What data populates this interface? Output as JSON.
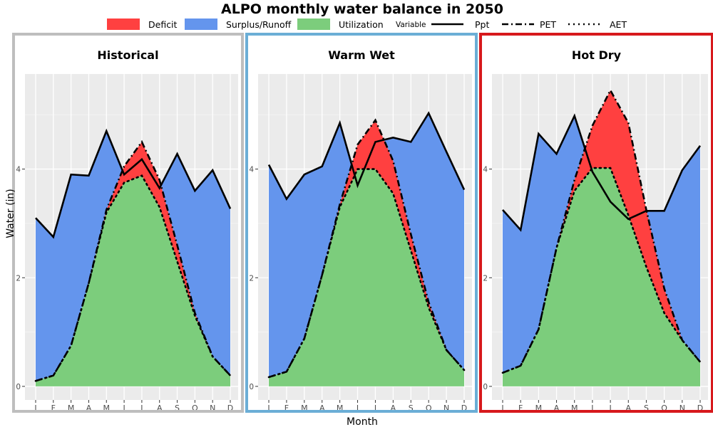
{
  "chart_data": {
    "type": "area",
    "title": "ALPO monthly water balance in 2050",
    "xlabel": "Month",
    "ylabel": "Water (in)",
    "ylim": [
      -0.25,
      5.75
    ],
    "yticks": [
      0,
      2,
      4
    ],
    "grid": true,
    "legend_position": "top",
    "legend": {
      "fill": [
        {
          "label": "Deficit",
          "color": "#ff4040"
        },
        {
          "label": "Surplus/Runoff",
          "color": "#6495ed"
        },
        {
          "label": "Utilization",
          "color": "#7ccd7c"
        }
      ],
      "lines_title": "Variable",
      "lines": [
        {
          "label": "Ppt",
          "dash": "solid"
        },
        {
          "label": "PET",
          "dash": "dashdot"
        },
        {
          "label": "AET",
          "dash": "dotted"
        }
      ]
    },
    "months": [
      "J",
      "F",
      "M",
      "A",
      "M",
      "J",
      "J",
      "A",
      "S",
      "O",
      "N",
      "D"
    ],
    "panels": [
      {
        "title": "Historical",
        "border_color": "#bebebe",
        "Ppt": [
          3.1,
          2.75,
          3.9,
          3.88,
          4.7,
          3.9,
          4.18,
          3.65,
          4.28,
          3.6,
          3.98,
          3.27
        ],
        "PET": [
          0.1,
          0.2,
          0.75,
          1.9,
          3.25,
          4.05,
          4.5,
          3.8,
          2.6,
          1.35,
          0.55,
          0.2
        ],
        "AET": [
          0.1,
          0.2,
          0.75,
          1.9,
          3.2,
          3.75,
          3.88,
          3.3,
          2.3,
          1.3,
          0.55,
          0.2
        ]
      },
      {
        "title": "Warm Wet",
        "border_color": "#6baed6",
        "Ppt": [
          4.08,
          3.45,
          3.9,
          4.05,
          4.85,
          3.7,
          4.5,
          4.58,
          4.5,
          5.03,
          4.32,
          3.62
        ],
        "PET": [
          0.17,
          0.27,
          0.88,
          2.05,
          3.35,
          4.45,
          4.9,
          4.15,
          2.8,
          1.55,
          0.67,
          0.3
        ],
        "AET": [
          0.17,
          0.27,
          0.88,
          2.05,
          3.3,
          4.0,
          4.0,
          3.55,
          2.5,
          1.45,
          0.67,
          0.3
        ]
      },
      {
        "title": "Hot Dry",
        "border_color": "#d7191c",
        "Ppt": [
          3.25,
          2.88,
          4.65,
          4.28,
          4.98,
          3.95,
          3.4,
          3.08,
          3.23,
          3.23,
          3.98,
          4.43
        ],
        "PET": [
          0.25,
          0.38,
          1.05,
          2.55,
          3.8,
          4.8,
          5.45,
          4.85,
          3.25,
          1.8,
          0.85,
          0.45
        ],
        "AET": [
          0.25,
          0.38,
          1.05,
          2.55,
          3.6,
          4.02,
          4.02,
          3.15,
          2.2,
          1.35,
          0.85,
          0.45
        ]
      }
    ]
  }
}
